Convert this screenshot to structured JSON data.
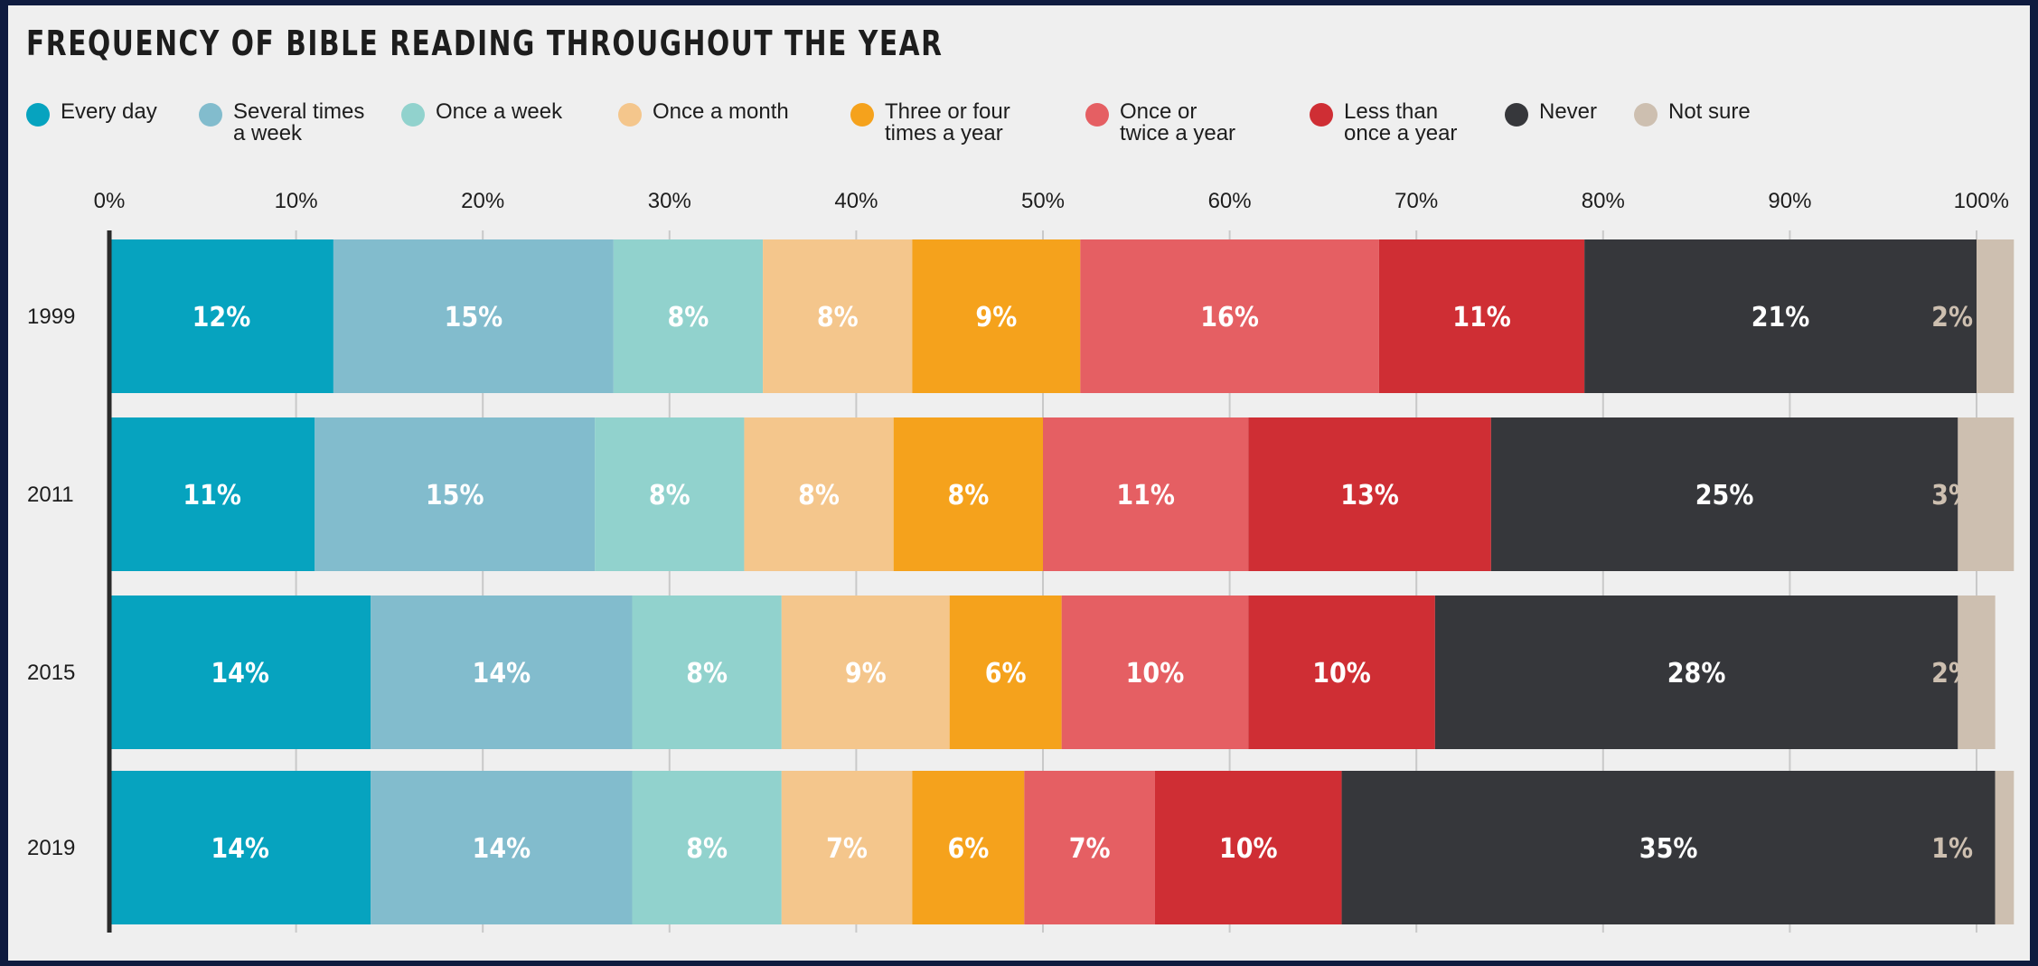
{
  "colors": {
    "Every day": "#06a3bf",
    "Several times a week": "#82bccd",
    "Once a week": "#91d2cd",
    "Once a month": "#f4c68c",
    "Three or four times a year": "#f5a21c",
    "Once or twice a year": "#e55f63",
    "Less than once a year": "#cf2e34",
    "Never": "#36373b",
    "Not sure": "#cdbfb0"
  },
  "label_colors": {
    "Every day": "#ffffff",
    "Several times a week": "#ffffff",
    "Once a week": "#ffffff",
    "Once a month": "#ffffff",
    "Three or four times a year": "#ffffff",
    "Once or twice a year": "#ffffff",
    "Less than once a year": "#ffffff",
    "Never": "#ffffff",
    "Not sure": "#cdbfb0"
  },
  "legend": [
    {
      "key": "Every day",
      "text": "Every day"
    },
    {
      "key": "Several times a week",
      "text": "Several times\na week"
    },
    {
      "key": "Once a week",
      "text": "Once a week"
    },
    {
      "key": "Once a month",
      "text": "Once a month"
    },
    {
      "key": "Three or four times a year",
      "text": "Three or four\ntimes a year"
    },
    {
      "key": "Once or twice a year",
      "text": "Once or\ntwice a year"
    },
    {
      "key": "Less than once a year",
      "text": "Less than\nonce a year"
    },
    {
      "key": "Never",
      "text": "Never"
    },
    {
      "key": "Not sure",
      "text": "Not sure"
    }
  ],
  "chart_data": {
    "type": "bar",
    "orientation": "horizontal",
    "stacked": true,
    "title": "FREQUENCY OF BIBLE READING THROUGHOUT THE YEAR",
    "categories": [
      "1999",
      "2011",
      "2015",
      "2019"
    ],
    "x_ticks": [
      "0%",
      "10%",
      "20%",
      "30%",
      "40%",
      "50%",
      "60%",
      "70%",
      "80%",
      "90%",
      "100%"
    ],
    "xlim": [
      0,
      100
    ],
    "legend_position": "top",
    "series": [
      {
        "name": "Every day",
        "values": [
          12,
          11,
          14,
          14
        ],
        "labels": [
          "12%",
          "11%",
          "14%",
          "14%"
        ]
      },
      {
        "name": "Several times a week",
        "values": [
          15,
          15,
          14,
          14
        ],
        "labels": [
          "15%",
          "15%",
          "14%",
          "14%"
        ]
      },
      {
        "name": "Once a week",
        "values": [
          8,
          8,
          8,
          8
        ],
        "labels": [
          "8%",
          "8%",
          "8%",
          "8%"
        ]
      },
      {
        "name": "Once a month",
        "values": [
          8,
          8,
          9,
          7
        ],
        "labels": [
          "8%",
          "8%",
          "9%",
          "7%"
        ]
      },
      {
        "name": "Three or four times a year",
        "values": [
          9,
          8,
          6,
          6
        ],
        "labels": [
          "9%",
          "8%",
          "6%",
          "6%"
        ]
      },
      {
        "name": "Once or twice a year",
        "values": [
          16,
          11,
          10,
          7
        ],
        "labels": [
          "16%",
          "11%",
          "10%",
          "7%"
        ]
      },
      {
        "name": "Less than once a year",
        "values": [
          11,
          13,
          10,
          10
        ],
        "labels": [
          "11%",
          "13%",
          "10%",
          "10%"
        ]
      },
      {
        "name": "Never",
        "values": [
          21,
          25,
          28,
          35
        ],
        "labels": [
          "21%",
          "25%",
          "28%",
          "35%"
        ]
      },
      {
        "name": "Not sure",
        "values": [
          2,
          3,
          2,
          1
        ],
        "labels": [
          "2%",
          "3%",
          "2%",
          "1%"
        ]
      }
    ]
  }
}
